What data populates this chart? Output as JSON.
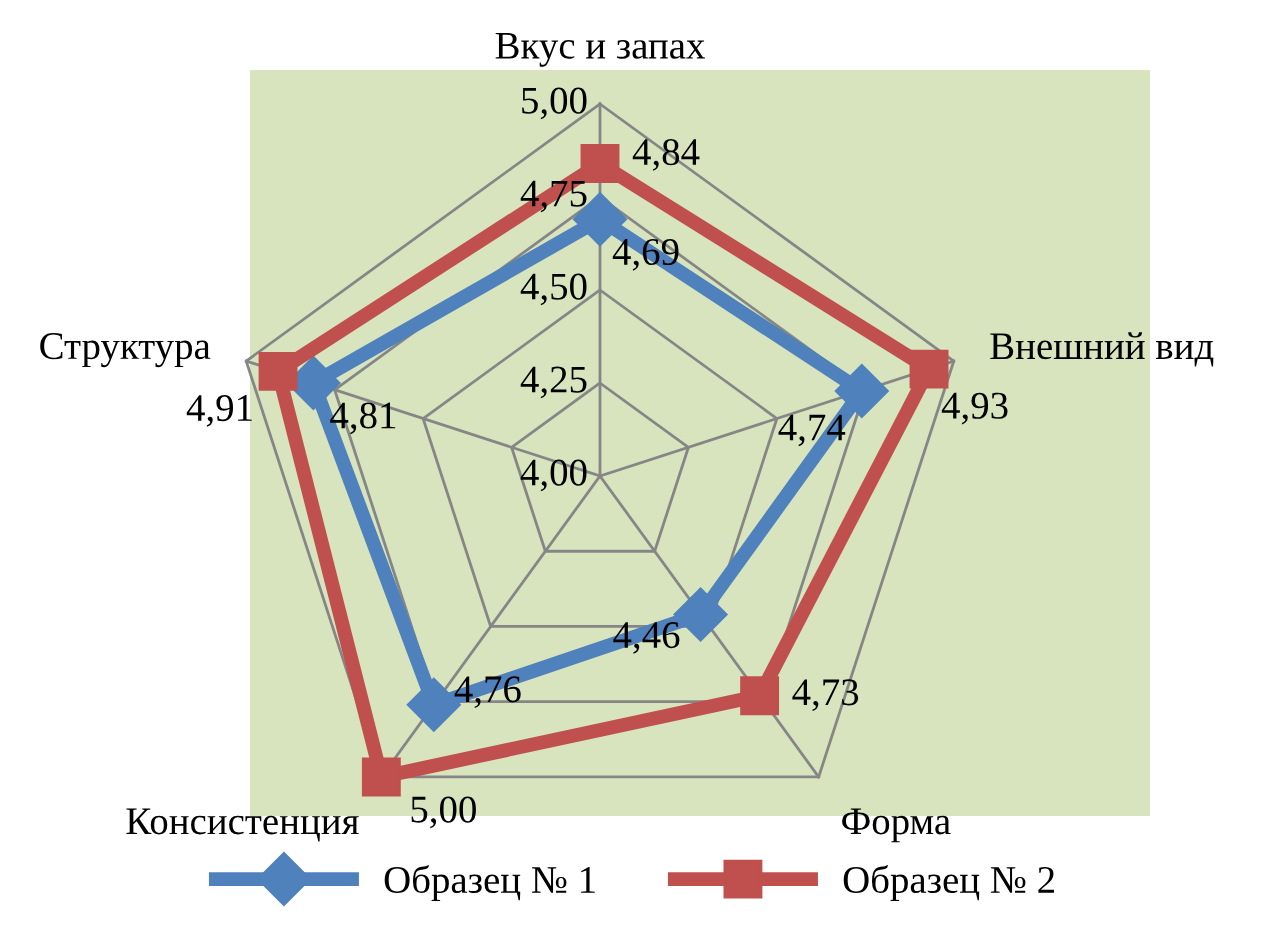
{
  "chart_data": {
    "type": "radar",
    "categories": [
      "Вкус и запах",
      "Внешний вид",
      "Форма",
      "Консистенция",
      "Структура"
    ],
    "series": [
      {
        "name": "Образец № 1",
        "color": "#4f81bd",
        "values": [
          4.69,
          4.74,
          4.46,
          4.76,
          4.81
        ],
        "value_labels": [
          "4,69",
          "4,74",
          "4,46",
          "4,76",
          "4,81"
        ],
        "marker": "diamond"
      },
      {
        "name": "Образец № 2",
        "color": "#c0504d",
        "values": [
          4.84,
          4.93,
          4.73,
          5.0,
          4.91
        ],
        "value_labels": [
          "4,84",
          "4,93",
          "4,73",
          "5,00",
          "4,91"
        ],
        "marker": "square"
      }
    ],
    "ylim": [
      4.0,
      5.0
    ],
    "yticks": [
      {
        "value": 4.0,
        "label": "4,00"
      },
      {
        "value": 4.25,
        "label": "4,25"
      },
      {
        "value": 4.5,
        "label": "4,50"
      },
      {
        "value": 4.75,
        "label": "4,75"
      },
      {
        "value": 5.0,
        "label": "5,00"
      }
    ],
    "grid": true,
    "legend": "bottom",
    "line_style": "solid"
  }
}
